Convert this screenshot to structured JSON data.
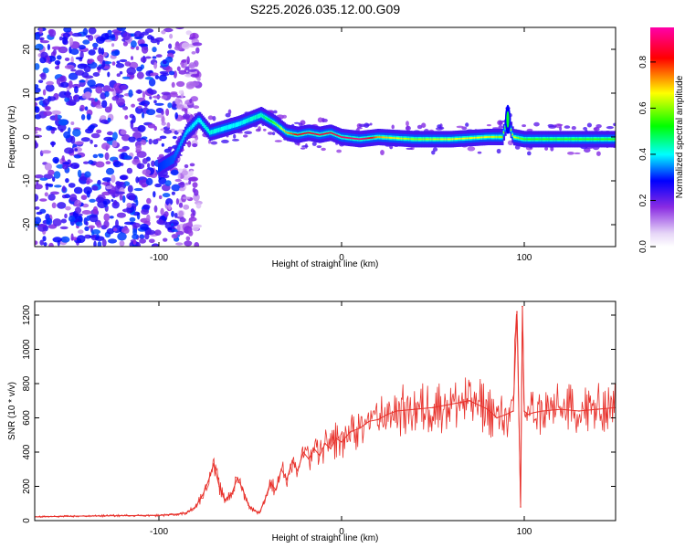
{
  "title": "S225.2026.035.12.00.G09",
  "chart_data": [
    {
      "type": "heatmap",
      "title": "S225.2026.035.12.00.G09",
      "xlabel": "Height of straight line (km)",
      "ylabel": "Frequency (Hz)",
      "xlim": [
        -168,
        150
      ],
      "ylim": [
        -25,
        25
      ],
      "xticks": [
        -100,
        0,
        100
      ],
      "xtick_labels": [
        "-100",
        "0",
        "100"
      ],
      "yticks": [
        -20,
        -10,
        0,
        10,
        20
      ],
      "ytick_labels": [
        "-20",
        "-10",
        "0",
        "10",
        "20"
      ],
      "colorbar": {
        "label": "Normalized spectral amplitude",
        "range": [
          0,
          0.95
        ],
        "ticks": [
          0.0,
          0.2,
          0.4,
          0.6,
          0.8
        ],
        "tick_labels": [
          "0.0",
          "0.2",
          "0.4",
          "0.6",
          "0.8"
        ],
        "colormap": [
          "#ffffff",
          "#8a2be2",
          "#0000ff",
          "#00ffff",
          "#00ff00",
          "#ffff00",
          "#ff0000",
          "#ff00aa"
        ]
      },
      "ridge": {
        "x": [
          -100,
          -92,
          -85,
          -78,
          -72,
          -64,
          -56,
          -50,
          -44,
          -40,
          -36,
          -30,
          -24,
          -18,
          -12,
          -6,
          0,
          10,
          20,
          40,
          60,
          80,
          88,
          91,
          94,
          100,
          120,
          150
        ],
        "freq": [
          -7,
          -5,
          1,
          4,
          1,
          2,
          3,
          4,
          5,
          4,
          3,
          1,
          0.5,
          1,
          0.5,
          1,
          0,
          -0.5,
          0,
          -0.5,
          -0.5,
          0,
          0,
          4,
          0,
          -0.5,
          -0.5,
          -0.5
        ],
        "amplitude": [
          0.2,
          0.22,
          0.28,
          0.3,
          0.32,
          0.3,
          0.3,
          0.32,
          0.34,
          0.4,
          0.48,
          0.6,
          0.72,
          0.75,
          0.8,
          0.78,
          0.85,
          0.9,
          0.6,
          0.5,
          0.55,
          0.55,
          0.5,
          0.45,
          0.55,
          0.45,
          0.45,
          0.45
        ]
      },
      "noise_region": {
        "x_from": -168,
        "x_to": -90,
        "level": 0.15
      }
    },
    {
      "type": "line",
      "xlabel": "Height of straight line (km)",
      "ylabel": "SNR (10 * v/v)",
      "xlim": [
        -168,
        150
      ],
      "ylim": [
        0,
        1280
      ],
      "xticks": [
        -100,
        0,
        100
      ],
      "xtick_labels": [
        "-100",
        "0",
        "100"
      ],
      "yticks": [
        0,
        200,
        400,
        600,
        800,
        1000,
        1200
      ],
      "ytick_labels": [
        "0",
        "200",
        "400",
        "600",
        "800",
        "1000",
        "1200"
      ],
      "series": [
        {
          "name": "SNR",
          "color": "#e8322c",
          "x": [
            -168,
            -150,
            -130,
            -110,
            -100,
            -90,
            -85,
            -80,
            -76,
            -73,
            -70,
            -67,
            -64,
            -60,
            -57,
            -54,
            -51,
            -48,
            -45,
            -42,
            -39,
            -36,
            -33,
            -30,
            -27,
            -24,
            -21,
            -18,
            -15,
            -12,
            -9,
            -6,
            -3,
            0,
            5,
            10,
            15,
            20,
            25,
            30,
            40,
            50,
            60,
            70,
            80,
            85,
            90,
            94,
            96,
            98,
            99,
            100,
            102,
            105,
            110,
            120,
            130,
            140,
            150
          ],
          "y": [
            22,
            25,
            28,
            30,
            30,
            38,
            45,
            80,
            150,
            230,
            330,
            200,
            120,
            160,
            250,
            180,
            90,
            60,
            45,
            120,
            220,
            180,
            300,
            240,
            350,
            290,
            400,
            360,
            420,
            380,
            450,
            420,
            480,
            460,
            520,
            540,
            580,
            590,
            620,
            640,
            650,
            660,
            680,
            700,
            650,
            600,
            620,
            640,
            1220,
            80,
            1250,
            640,
            620,
            630,
            640,
            650,
            640,
            650,
            660
          ]
        }
      ]
    }
  ]
}
